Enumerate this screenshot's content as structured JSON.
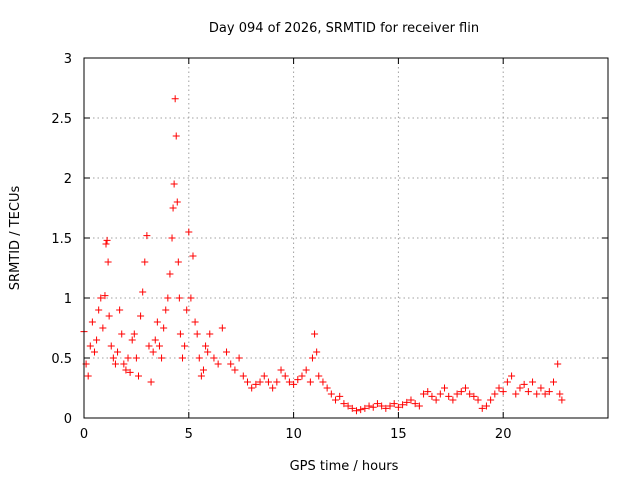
{
  "chart_data": {
    "type": "scatter",
    "title": "Day 094 of 2026, SRMTID for receiver flin",
    "xlabel": "GPS time / hours",
    "ylabel": "SRMTID / TECUs",
    "xlim": [
      0,
      25
    ],
    "ylim": [
      0,
      3
    ],
    "xticks": [
      0,
      5,
      10,
      15,
      20
    ],
    "yticks": [
      0,
      0.5,
      1,
      1.5,
      2,
      2.5,
      3
    ],
    "xtick_labels": [
      "0",
      "5",
      "10",
      "15",
      "20"
    ],
    "ytick_labels": [
      "0",
      "0.5",
      "1",
      "1.5",
      "2",
      "2.5",
      "3"
    ],
    "grid": true,
    "marker": "+",
    "color": "#ff0000",
    "series": [
      {
        "name": "SRMTID",
        "x": [
          0.0,
          0.1,
          0.2,
          0.3,
          0.4,
          0.5,
          0.6,
          0.7,
          0.8,
          0.9,
          1.0,
          1.05,
          1.1,
          1.15,
          1.2,
          1.3,
          1.4,
          1.5,
          1.6,
          1.7,
          1.8,
          1.9,
          2.0,
          2.1,
          2.2,
          2.3,
          2.4,
          2.5,
          2.6,
          2.7,
          2.8,
          2.9,
          3.0,
          3.1,
          3.2,
          3.3,
          3.4,
          3.5,
          3.6,
          3.7,
          3.8,
          3.9,
          4.0,
          4.1,
          4.2,
          4.25,
          4.3,
          4.35,
          4.4,
          4.45,
          4.5,
          4.55,
          4.6,
          4.7,
          4.8,
          4.9,
          5.0,
          5.1,
          5.2,
          5.3,
          5.4,
          5.5,
          5.6,
          5.7,
          5.8,
          5.9,
          6.0,
          6.2,
          6.4,
          6.6,
          6.8,
          7.0,
          7.2,
          7.4,
          7.6,
          7.8,
          8.0,
          8.2,
          8.4,
          8.6,
          8.8,
          9.0,
          9.2,
          9.4,
          9.6,
          9.8,
          10.0,
          10.2,
          10.4,
          10.6,
          10.8,
          10.9,
          11.0,
          11.1,
          11.2,
          11.4,
          11.6,
          11.8,
          12.0,
          12.2,
          12.4,
          12.6,
          12.8,
          13.0,
          13.2,
          13.4,
          13.6,
          13.8,
          14.0,
          14.2,
          14.4,
          14.6,
          14.8,
          15.0,
          15.2,
          15.4,
          15.6,
          15.8,
          16.0,
          16.2,
          16.4,
          16.6,
          16.8,
          17.0,
          17.2,
          17.4,
          17.6,
          17.8,
          18.0,
          18.2,
          18.4,
          18.6,
          18.8,
          19.0,
          19.2,
          19.4,
          19.6,
          19.8,
          20.0,
          20.2,
          20.4,
          20.6,
          20.8,
          21.0,
          21.2,
          21.4,
          21.6,
          21.8,
          22.0,
          22.2,
          22.4,
          22.6,
          22.7,
          22.8
        ],
        "y": [
          0.72,
          0.45,
          0.35,
          0.6,
          0.8,
          0.55,
          0.65,
          0.9,
          1.0,
          0.75,
          1.02,
          1.45,
          1.48,
          1.3,
          0.85,
          0.6,
          0.5,
          0.45,
          0.55,
          0.9,
          0.7,
          0.45,
          0.4,
          0.5,
          0.38,
          0.65,
          0.7,
          0.5,
          0.35,
          0.85,
          1.05,
          1.3,
          1.52,
          0.6,
          0.3,
          0.55,
          0.65,
          0.8,
          0.6,
          0.5,
          0.75,
          0.9,
          1.0,
          1.2,
          1.5,
          1.75,
          1.95,
          2.66,
          2.35,
          1.8,
          1.3,
          1.0,
          0.7,
          0.5,
          0.6,
          0.9,
          1.55,
          1.0,
          1.35,
          0.8,
          0.7,
          0.5,
          0.35,
          0.4,
          0.6,
          0.55,
          0.7,
          0.5,
          0.45,
          0.75,
          0.55,
          0.45,
          0.4,
          0.5,
          0.35,
          0.3,
          0.25,
          0.28,
          0.3,
          0.35,
          0.3,
          0.25,
          0.3,
          0.4,
          0.35,
          0.3,
          0.28,
          0.32,
          0.35,
          0.4,
          0.3,
          0.5,
          0.7,
          0.55,
          0.35,
          0.3,
          0.25,
          0.2,
          0.15,
          0.18,
          0.12,
          0.1,
          0.08,
          0.06,
          0.07,
          0.08,
          0.1,
          0.09,
          0.12,
          0.1,
          0.08,
          0.1,
          0.12,
          0.09,
          0.11,
          0.13,
          0.15,
          0.12,
          0.1,
          0.2,
          0.22,
          0.18,
          0.15,
          0.2,
          0.25,
          0.18,
          0.15,
          0.2,
          0.22,
          0.25,
          0.2,
          0.18,
          0.15,
          0.08,
          0.1,
          0.15,
          0.2,
          0.25,
          0.22,
          0.3,
          0.35,
          0.2,
          0.25,
          0.28,
          0.22,
          0.3,
          0.2,
          0.25,
          0.2,
          0.22,
          0.3,
          0.45,
          0.2,
          0.15
        ]
      }
    ]
  }
}
